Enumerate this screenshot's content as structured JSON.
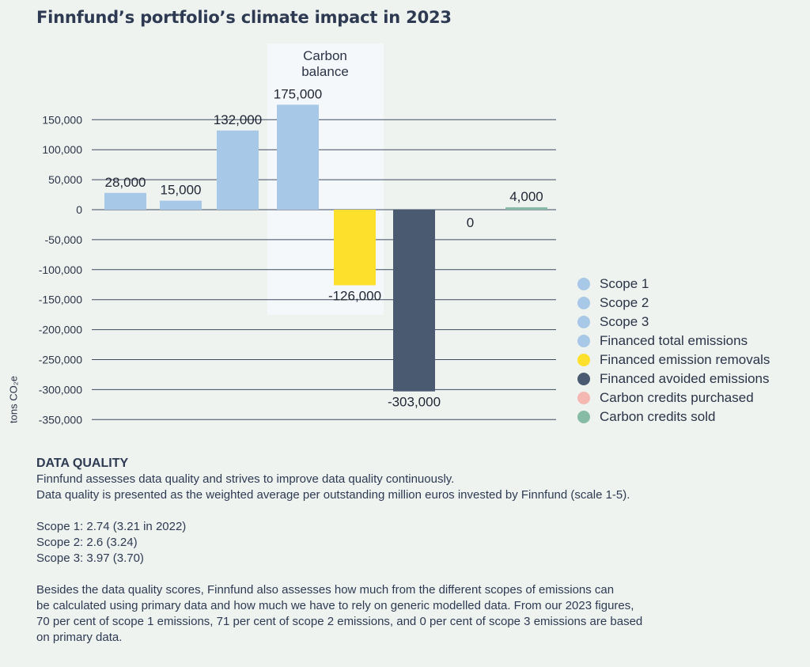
{
  "title": "Finnfund’s portfolio’s climate impact in 2023",
  "colors": {
    "scope": "#a8c8e8",
    "removals": "#fde02b",
    "avoided": "#4a5a70",
    "purchased": "#f4b7b1",
    "sold": "#86bca6",
    "grid": "#3f4a5e",
    "highlight": "#f5f8fa"
  },
  "chart_data": {
    "type": "bar",
    "ylabel": "tons CO₂e",
    "ylim": [
      -350000,
      175000
    ],
    "yticks": [
      150000,
      100000,
      50000,
      0,
      -50000,
      -100000,
      -150000,
      -200000,
      -250000,
      -300000,
      -350000
    ],
    "ytick_labels": [
      "150,000",
      "100,000",
      "50,000",
      "0",
      "-50,000",
      "-100,000",
      "-150,000",
      "-200,000",
      "-250,000",
      "-300,000",
      "-350,000"
    ],
    "highlight_label": [
      "Carbon",
      "balance"
    ],
    "bars": [
      {
        "category": "Scope 1",
        "value": 28000,
        "label": "28,000",
        "color_key": "scope"
      },
      {
        "category": "Scope 2",
        "value": 15000,
        "label": "15,000",
        "color_key": "scope"
      },
      {
        "category": "Scope 3",
        "value": 132000,
        "label": "132,000",
        "color_key": "scope"
      },
      {
        "category": "Financed total emissions",
        "value": 175000,
        "label": "175,000",
        "color_key": "scope"
      },
      {
        "category": "Financed emission removals",
        "value": -126000,
        "label": "-126,000",
        "color_key": "removals"
      },
      {
        "category": "Financed avoided emissions",
        "value": -303000,
        "label": "-303,000",
        "color_key": "avoided"
      },
      {
        "category": "Carbon credits purchased",
        "value": 0,
        "label": "0",
        "color_key": "purchased"
      },
      {
        "category": "Carbon credits sold",
        "value": 4000,
        "label": "4,000",
        "color_key": "sold"
      }
    ],
    "legend": [
      {
        "label": "Scope 1",
        "color_key": "scope"
      },
      {
        "label": "Scope 2",
        "color_key": "scope"
      },
      {
        "label": "Scope 3",
        "color_key": "scope"
      },
      {
        "label": "Financed total emissions",
        "color_key": "scope"
      },
      {
        "label": "Financed emission removals",
        "color_key": "removals"
      },
      {
        "label": "Financed avoided emissions",
        "color_key": "avoided"
      },
      {
        "label": "Carbon credits purchased",
        "color_key": "purchased"
      },
      {
        "label": "Carbon credits sold",
        "color_key": "sold"
      }
    ],
    "legend_position": "right"
  },
  "data_quality": {
    "heading": "DATA QUALITY",
    "intro1": "Finnfund assesses data quality and strives to improve data quality continuously.",
    "intro2": "Data quality is presented as the weighted average per outstanding million euros invested by Finnfund (scale 1-5).",
    "scope1": "Scope 1: 2.74 (3.21 in 2022)",
    "scope2": "Scope 2: 2.6 (3.24)",
    "scope3": "Scope 3: 3.97 (3.70)",
    "para_line1": "Besides the data quality scores, Finnfund also assesses how much from the different scopes of emissions can",
    "para_line2": "be calculated using primary data and how much we have to rely on generic modelled data. From our 2023 figures,",
    "para_line3": "70 per cent of scope 1 emissions, 71 per cent of scope 2 emissions, and 0 per cent of scope 3 emissions are based",
    "para_line4": "on primary data."
  }
}
